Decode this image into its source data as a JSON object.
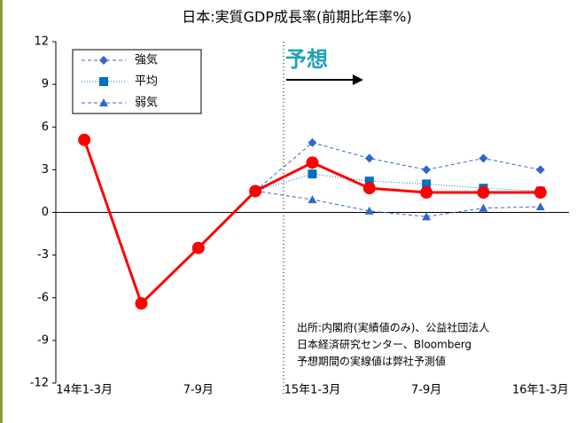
{
  "chart_data": {
    "type": "line",
    "title": "日本:実質GDP成長率(前期比年率%)",
    "categories": [
      "14年1-3月",
      null,
      "7-9月",
      null,
      "15年1-3月",
      null,
      "7-9月",
      null,
      "16年1-3月"
    ],
    "series": [
      {
        "color": "#ff0000",
        "values": [
          5.1,
          -6.4,
          -2.5,
          1.5,
          3.5,
          1.7,
          1.4,
          1.4,
          1.4
        ]
      },
      {
        "name": "強気",
        "color": "#3366cc",
        "values": [
          null,
          null,
          null,
          1.5,
          4.9,
          3.8,
          3.0,
          3.8,
          3.0
        ]
      },
      {
        "name": "平均",
        "color": "#0070c0",
        "values": [
          null,
          null,
          null,
          1.5,
          2.7,
          2.2,
          2.0,
          1.7,
          1.5
        ]
      },
      {
        "name": "弱気",
        "color": "#3366cc",
        "values": [
          null,
          null,
          null,
          1.5,
          0.9,
          0.1,
          -0.3,
          0.3,
          0.4
        ]
      }
    ],
    "ylim": [
      -12,
      12
    ],
    "yticks": [
      -12,
      -9,
      -6,
      -3,
      0,
      3,
      6,
      9,
      12
    ],
    "forecast_label": "予想",
    "source": [
      "出所:内閣府(実績値のみ)、公益社団法人",
      "日本経済研究センター、Bloomberg",
      "予想期間の実線値は弊社予測値"
    ]
  }
}
